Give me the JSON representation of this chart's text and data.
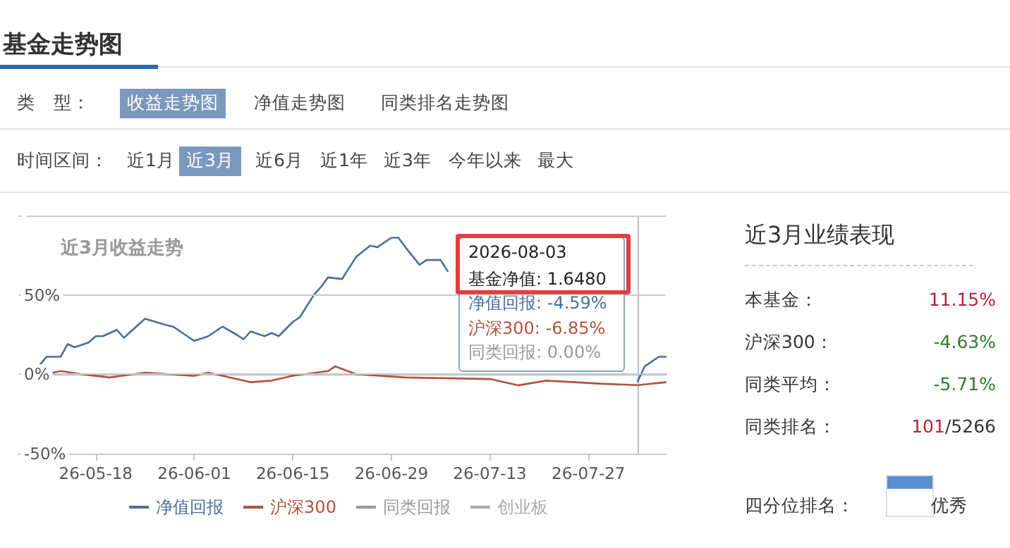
{
  "chart_data": [
    {
      "type": "other",
      "title": "基金走势图",
      "annotations": [
        "类　型：",
        "收益走势图",
        "净值走势图",
        "同类排名走势图",
        "时间区间：",
        "近1月",
        "近3月",
        "近6月",
        "近1年",
        "近3年",
        "今年以来",
        "最大"
      ]
    },
    {
      "type": "line",
      "title": "近3月收益走势",
      "xlim": [
        "2026-05-07",
        "2026-08-07"
      ],
      "xticks": [
        {
          "value": "2026-05-18",
          "label": "26-05-18"
        },
        {
          "value": "2026-06-01",
          "label": "26-06-01"
        },
        {
          "value": "2026-06-15",
          "label": "26-06-15"
        },
        {
          "value": "2026-06-29",
          "label": "26-06-29"
        },
        {
          "value": "2026-07-13",
          "label": "26-07-13"
        },
        {
          "value": "2026-07-27",
          "label": "26-07-27"
        }
      ],
      "ylim": [
        -50,
        100
      ],
      "yticks": [
        {
          "value": -50,
          "label": "-50%"
        },
        {
          "value": 0,
          "label": "0%"
        },
        {
          "value": 50,
          "label": "50%"
        },
        {
          "value": 100,
          "label": null
        }
      ],
      "grid": "y",
      "legend": "bottom",
      "marker": "none",
      "line_style": "solid",
      "series": [
        {
          "name": "净值回报",
          "color": "#4a6f9a",
          "x": [
            "2026-05-09",
            "2026-05-11",
            "2026-05-13",
            "2026-05-14",
            "2026-05-15",
            "2026-05-17",
            "2026-05-18",
            "2026-05-19",
            "2026-05-21",
            "2026-05-22",
            "2026-05-25",
            "2026-05-28",
            "2026-05-29",
            "2026-06-01",
            "2026-06-03",
            "2026-06-05",
            "2026-06-07",
            "2026-06-08",
            "2026-06-09",
            "2026-06-11",
            "2026-06-12",
            "2026-06-13",
            "2026-06-15",
            "2026-06-16",
            "2026-06-18",
            "2026-06-19",
            "2026-06-20",
            "2026-06-22",
            "2026-06-24",
            "2026-06-26",
            "2026-06-27",
            "2026-06-29",
            "2026-06-30",
            "2026-07-01",
            "2026-07-03",
            "2026-07-04",
            "2026-07-06",
            "2026-07-07",
            "2026-07-09",
            "2026-07-21",
            "2026-07-29",
            "2026-08-03",
            "2026-08-04",
            "2026-08-06",
            "2026-08-07"
          ],
          "values": [
            0,
            11,
            11,
            19,
            17,
            20,
            24,
            24,
            28,
            23,
            35,
            31,
            30,
            21,
            24,
            30,
            25,
            22,
            27,
            24,
            26,
            24,
            33,
            36,
            50,
            55,
            61,
            60,
            74,
            81,
            80,
            86,
            86,
            80,
            69,
            72,
            72,
            65,
            null,
            null,
            null,
            -4.59,
            5,
            11,
            11
          ]
        },
        {
          "name": "沪深300",
          "color": "#b0533f",
          "x": [
            "2026-05-11",
            "2026-05-13",
            "2026-05-16",
            "2026-05-20",
            "2026-05-25",
            "2026-06-01",
            "2026-06-03",
            "2026-06-06",
            "2026-06-09",
            "2026-06-12",
            "2026-06-15",
            "2026-06-20",
            "2026-06-21",
            "2026-06-24",
            "2026-07-01",
            "2026-07-13",
            "2026-07-17",
            "2026-07-21",
            "2026-07-29",
            "2026-08-03",
            "2026-08-07"
          ],
          "values": [
            0,
            2,
            0,
            -2,
            1,
            -1,
            1,
            -2,
            -5,
            -4,
            -1,
            2,
            5,
            0,
            -2,
            -3,
            -7,
            -4,
            -6,
            -6.85,
            -5
          ]
        },
        {
          "name": "同类回报",
          "color": "#999999",
          "x": [
            "2026-05-09",
            "2026-08-03",
            "2026-08-07"
          ],
          "values": [
            0,
            0,
            0
          ]
        },
        {
          "name": "创业板",
          "color": "#aaaaaa"
        }
      ],
      "ref_lines": [
        {
          "axis": "x",
          "value": "2026-08-03",
          "label": null,
          "color": "#b8bcc4"
        }
      ],
      "annotations": [
        "2026-08-03",
        "基金净值: 1.6480",
        "净值回报: -4.59%",
        "沪深300: -6.85%",
        "同类回报: 0.00%"
      ]
    },
    {
      "type": "other",
      "title": "近3月业绩表现",
      "annotations": [
        "本基金：",
        "11.15%",
        "沪深300：",
        "-4.63%",
        "同类平均：",
        "-5.71%",
        "同类排名：",
        "101",
        "/5266",
        "四分位排名：",
        "优秀"
      ]
    }
  ]
}
